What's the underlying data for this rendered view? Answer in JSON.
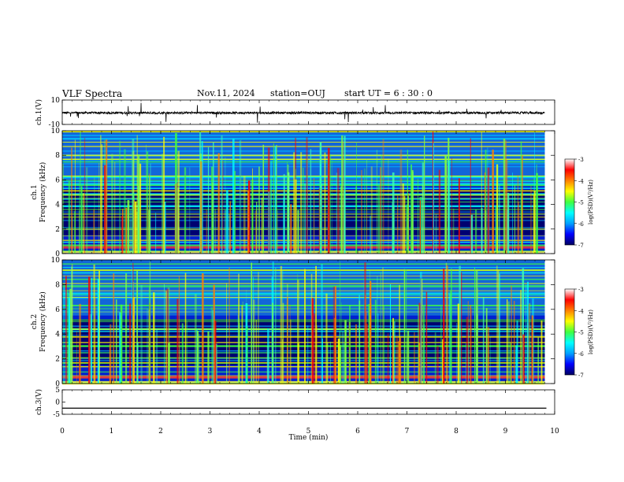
{
  "header": {
    "title": "VLF Spectra",
    "date": "Nov.11, 2024",
    "station": "station=OUJ",
    "start_ut": "start UT = 6 : 30 : 0"
  },
  "chart_data": [
    {
      "type": "line",
      "panel": "ch1-waveform",
      "ylabel": "ch.1(V)",
      "ylim": [
        -10,
        10
      ],
      "y_ticks": [
        "10",
        "-10"
      ],
      "x_range_min": [
        0,
        10
      ],
      "signal_extent_min": [
        0,
        9.8
      ],
      "baseline_v": -0.5,
      "noise_amplitude_v": 1.8
    },
    {
      "type": "heatmap",
      "panel": "ch1-spectrogram",
      "ylabel_line1": "ch.1",
      "ylabel_line2": "Frequency (kHz)",
      "ylim": [
        0,
        10
      ],
      "y_ticks": [
        "0",
        "2",
        "4",
        "6",
        "8",
        "10"
      ],
      "colorbar": {
        "range": [
          -7,
          -3
        ],
        "ticks": [
          "-3",
          "-4",
          "-5",
          "-6",
          "-7"
        ],
        "label": "log(PSD)(V²/Hz)"
      }
    },
    {
      "type": "heatmap",
      "panel": "ch2-spectrogram",
      "ylabel_line1": "ch.2",
      "ylabel_line2": "Frequency (kHz)",
      "ylim": [
        0,
        10
      ],
      "y_ticks": [
        "0",
        "2",
        "4",
        "6",
        "8",
        "10"
      ],
      "colorbar": {
        "range": [
          -7,
          -3
        ],
        "ticks": [
          "-3",
          "-4",
          "-5",
          "-6",
          "-7"
        ],
        "label": "log(PSD)(V²/Hz)"
      }
    },
    {
      "type": "line",
      "panel": "ch3-waveform",
      "ylabel": "ch.3(V)",
      "ylim": [
        -5,
        5
      ],
      "y_ticks": [
        "5",
        "0",
        "-5"
      ],
      "constant_value_v": -2.5
    }
  ],
  "x_axis": {
    "label": "Time (min)",
    "ticks": [
      "0",
      "1",
      "2",
      "3",
      "4",
      "5",
      "6",
      "7",
      "8",
      "9",
      "10"
    ],
    "range": [
      0,
      10
    ],
    "data_extent_min": 9.8
  },
  "colors": {
    "colormap": [
      "#000080",
      "#0000ff",
      "#00b0ff",
      "#00ffff",
      "#40ff40",
      "#ffff00",
      "#ff8000",
      "#ff0000",
      "#ffffff"
    ]
  }
}
